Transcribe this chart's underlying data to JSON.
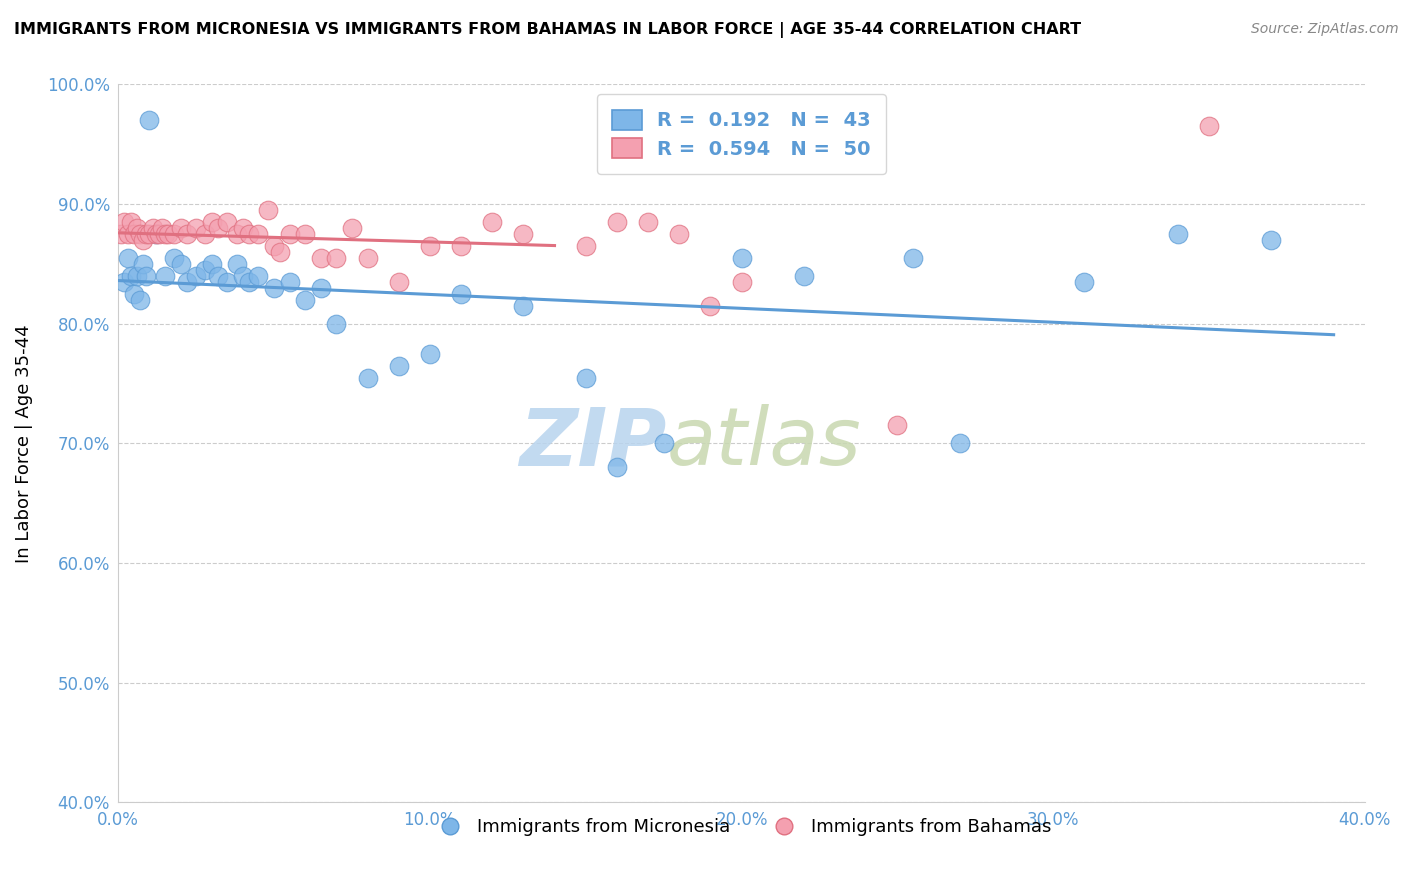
{
  "title": "IMMIGRANTS FROM MICRONESIA VS IMMIGRANTS FROM BAHAMAS IN LABOR FORCE | AGE 35-44 CORRELATION CHART",
  "source": "Source: ZipAtlas.com",
  "xlabel_blue": "Immigrants from Micronesia",
  "xlabel_pink": "Immigrants from Bahamas",
  "ylabel": "In Labor Force | Age 35-44",
  "R_blue": 0.192,
  "N_blue": 43,
  "R_pink": 0.594,
  "N_pink": 50,
  "xlim": [
    0.0,
    0.4
  ],
  "ylim": [
    0.4,
    1.0
  ],
  "xticks": [
    0.0,
    0.1,
    0.2,
    0.3,
    0.4
  ],
  "yticks": [
    0.4,
    0.5,
    0.6,
    0.7,
    0.8,
    0.9,
    1.0
  ],
  "color_blue": "#7EB6E8",
  "color_pink": "#F4A0B0",
  "trendline_blue": "#5B9BD5",
  "trendline_pink": "#E07080",
  "watermark_zip": "ZIP",
  "watermark_atlas": "atlas",
  "watermark_color_zip": "#B8D4EE",
  "watermark_color_atlas": "#C8D8B0",
  "blue_x": [
    0.002,
    0.003,
    0.004,
    0.005,
    0.006,
    0.007,
    0.008,
    0.009,
    0.01,
    0.012,
    0.015,
    0.018,
    0.02,
    0.022,
    0.025,
    0.028,
    0.03,
    0.032,
    0.035,
    0.038,
    0.04,
    0.042,
    0.045,
    0.05,
    0.055,
    0.06,
    0.065,
    0.07,
    0.08,
    0.09,
    0.1,
    0.11,
    0.13,
    0.15,
    0.16,
    0.175,
    0.2,
    0.22,
    0.255,
    0.27,
    0.31,
    0.34,
    0.37
  ],
  "blue_y": [
    0.835,
    0.855,
    0.84,
    0.825,
    0.84,
    0.82,
    0.85,
    0.84,
    0.97,
    0.875,
    0.84,
    0.855,
    0.85,
    0.835,
    0.84,
    0.845,
    0.85,
    0.84,
    0.835,
    0.85,
    0.84,
    0.835,
    0.84,
    0.83,
    0.835,
    0.82,
    0.83,
    0.8,
    0.755,
    0.765,
    0.775,
    0.825,
    0.815,
    0.755,
    0.68,
    0.7,
    0.855,
    0.84,
    0.855,
    0.7,
    0.835,
    0.875,
    0.87
  ],
  "pink_x": [
    0.001,
    0.002,
    0.003,
    0.004,
    0.005,
    0.006,
    0.007,
    0.008,
    0.009,
    0.01,
    0.011,
    0.012,
    0.013,
    0.014,
    0.015,
    0.016,
    0.018,
    0.02,
    0.022,
    0.025,
    0.028,
    0.03,
    0.032,
    0.035,
    0.038,
    0.04,
    0.042,
    0.045,
    0.048,
    0.05,
    0.052,
    0.055,
    0.06,
    0.065,
    0.07,
    0.075,
    0.08,
    0.09,
    0.1,
    0.11,
    0.12,
    0.13,
    0.15,
    0.16,
    0.17,
    0.18,
    0.19,
    0.2,
    0.25,
    0.35
  ],
  "pink_y": [
    0.875,
    0.885,
    0.875,
    0.885,
    0.875,
    0.88,
    0.875,
    0.87,
    0.875,
    0.875,
    0.88,
    0.875,
    0.875,
    0.88,
    0.875,
    0.875,
    0.875,
    0.88,
    0.875,
    0.88,
    0.875,
    0.885,
    0.88,
    0.885,
    0.875,
    0.88,
    0.875,
    0.875,
    0.895,
    0.865,
    0.86,
    0.875,
    0.875,
    0.855,
    0.855,
    0.88,
    0.855,
    0.835,
    0.865,
    0.865,
    0.885,
    0.875,
    0.865,
    0.885,
    0.885,
    0.875,
    0.815,
    0.835,
    0.715,
    0.965
  ]
}
